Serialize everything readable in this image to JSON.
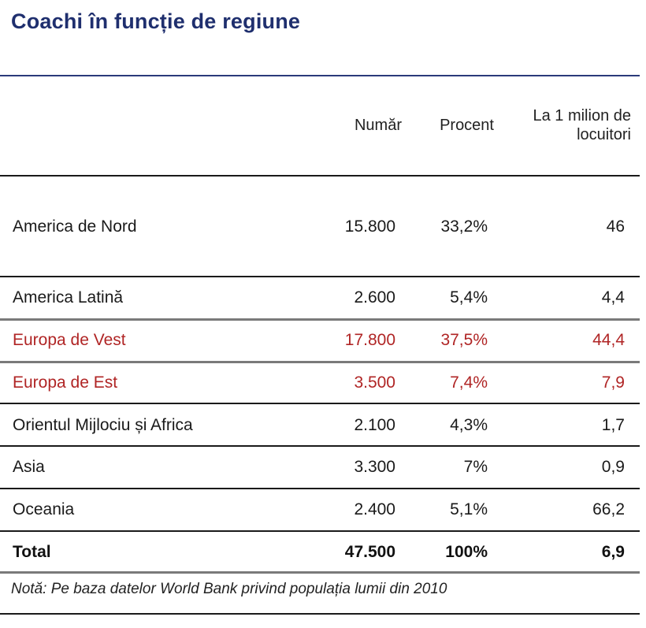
{
  "title": "Coachi în funcție de regiune",
  "chart_data": {
    "type": "table",
    "title": "Coachi în funcție de regiune",
    "columns": [
      "",
      "Număr",
      "Procent",
      "La 1 milion de locuitori"
    ],
    "column_headers": {
      "numar": "Număr",
      "procent": "Procent",
      "milion_line1": "La 1 milion de",
      "milion_line2": "locuitori"
    },
    "rows": [
      {
        "region": "America de Nord",
        "numar": "15.800",
        "procent": "33,2%",
        "milion": "46",
        "highlight": false
      },
      {
        "region": "America Latină",
        "numar": "2.600",
        "procent": "5,4%",
        "milion": "4,4",
        "highlight": false
      },
      {
        "region": "Europa de Vest",
        "numar": "17.800",
        "procent": "37,5%",
        "milion": "44,4",
        "highlight": true
      },
      {
        "region": "Europa de Est",
        "numar": "3.500",
        "procent": "7,4%",
        "milion": "7,9",
        "highlight": true
      },
      {
        "region": "Orientul Mijlociu și Africa",
        "numar": "2.100",
        "procent": "4,3%",
        "milion": "1,7",
        "highlight": false
      },
      {
        "region": "Asia",
        "numar": "3.300",
        "procent": "7%",
        "milion": "0,9",
        "highlight": false
      },
      {
        "region": "Oceania",
        "numar": "2.400",
        "procent": "5,1%",
        "milion": "66,2",
        "highlight": false
      }
    ],
    "total": {
      "region": "Total",
      "numar": "47.500",
      "procent": "100%",
      "milion": "6,9"
    },
    "highlight_color": "#b02525"
  },
  "note": "Notă: Pe baza datelor World Bank privind populația lumii din 2010"
}
